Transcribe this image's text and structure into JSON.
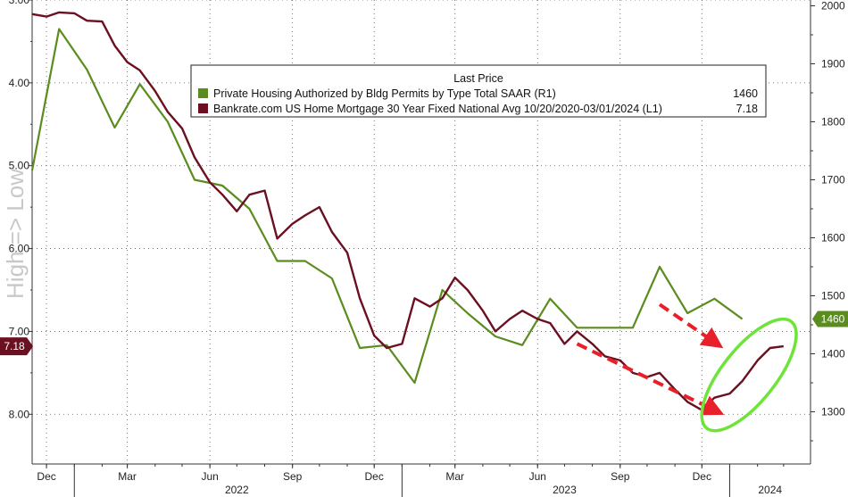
{
  "chart_data": {
    "type": "line",
    "legend_title": "Last Price",
    "legend_placement": "top-center",
    "rotated_label": "High => Low",
    "left_axis": {
      "label": "",
      "inverted": true,
      "range": [
        3.0,
        8.6
      ],
      "ticks": [
        {
          "value": 3.0,
          "label": "3.00"
        },
        {
          "value": 4.0,
          "label": "4.00"
        },
        {
          "value": 5.0,
          "label": "5.00"
        },
        {
          "value": 6.0,
          "label": "6.00"
        },
        {
          "value": 7.0,
          "label": "7.00"
        },
        {
          "value": 8.0,
          "label": "8.00"
        }
      ]
    },
    "right_axis": {
      "label": "",
      "range": [
        1210,
        2010
      ],
      "ticks": [
        {
          "value": 2000,
          "label": "2000"
        },
        {
          "value": 1900,
          "label": "1900"
        },
        {
          "value": 1800,
          "label": "1800"
        },
        {
          "value": 1700,
          "label": "1700"
        },
        {
          "value": 1600,
          "label": "1600"
        },
        {
          "value": 1500,
          "label": "1500"
        },
        {
          "value": 1400,
          "label": "1400"
        },
        {
          "value": 1300,
          "label": "1300"
        }
      ]
    },
    "x_axis": {
      "range": [
        "2021-11-15",
        "2024-03-31"
      ],
      "month_ticks": [
        {
          "date": "2021-12-01",
          "label": "Dec"
        },
        {
          "date": "2022-03-01",
          "label": "Mar"
        },
        {
          "date": "2022-06-01",
          "label": "Jun"
        },
        {
          "date": "2022-09-01",
          "label": "Sep"
        },
        {
          "date": "2022-12-01",
          "label": "Dec"
        },
        {
          "date": "2023-03-01",
          "label": "Mar"
        },
        {
          "date": "2023-06-01",
          "label": "Jun"
        },
        {
          "date": "2023-09-01",
          "label": "Sep"
        },
        {
          "date": "2023-12-01",
          "label": "Dec"
        }
      ],
      "year_labels": [
        {
          "date": "2022-07-01",
          "label": "2022"
        },
        {
          "date": "2023-07-01",
          "label": "2023"
        },
        {
          "date": "2024-02-15",
          "label": "2024"
        }
      ],
      "year_dividers": [
        "2022-01-01",
        "2023-01-01",
        "2024-01-01"
      ]
    },
    "series": [
      {
        "name": "Private Housing Authorized by Bldg Permits by Type Total SAAR  (R1)",
        "last_value": "1460",
        "axis": "right",
        "color": "#5b8c1e",
        "points": [
          [
            "2021-11-15",
            1716
          ],
          [
            "2021-12-15",
            1960
          ],
          [
            "2022-01-15",
            1890
          ],
          [
            "2022-02-15",
            1790
          ],
          [
            "2022-03-15",
            1865
          ],
          [
            "2022-04-15",
            1800
          ],
          [
            "2022-05-15",
            1700
          ],
          [
            "2022-06-15",
            1690
          ],
          [
            "2022-07-15",
            1650
          ],
          [
            "2022-08-15",
            1560
          ],
          [
            "2022-09-15",
            1560
          ],
          [
            "2022-10-15",
            1530
          ],
          [
            "2022-11-15",
            1410
          ],
          [
            "2022-12-15",
            1415
          ],
          [
            "2023-01-15",
            1350
          ],
          [
            "2023-02-15",
            1510
          ],
          [
            "2023-03-15",
            1470
          ],
          [
            "2023-04-15",
            1430
          ],
          [
            "2023-05-15",
            1415
          ],
          [
            "2023-06-15",
            1495
          ],
          [
            "2023-07-15",
            1445
          ],
          [
            "2023-08-15",
            1445
          ],
          [
            "2023-09-15",
            1445
          ],
          [
            "2023-10-15",
            1550
          ],
          [
            "2023-11-15",
            1470
          ],
          [
            "2023-12-15",
            1495
          ],
          [
            "2024-01-15",
            1460
          ]
        ]
      },
      {
        "name": "Bankrate.com US Home Mortgage 30 Year Fixed National Avg 10/20/2020-03/01/2024  (L1)",
        "last_value": "7.18",
        "axis": "left",
        "color": "#6b1020",
        "points": [
          [
            "2021-11-15",
            3.17
          ],
          [
            "2021-12-01",
            3.2
          ],
          [
            "2021-12-15",
            3.15
          ],
          [
            "2022-01-01",
            3.16
          ],
          [
            "2022-01-15",
            3.25
          ],
          [
            "2022-02-01",
            3.26
          ],
          [
            "2022-02-15",
            3.55
          ],
          [
            "2022-03-01",
            3.75
          ],
          [
            "2022-03-15",
            3.85
          ],
          [
            "2022-04-01",
            4.1
          ],
          [
            "2022-04-15",
            4.35
          ],
          [
            "2022-05-01",
            4.55
          ],
          [
            "2022-05-15",
            4.9
          ],
          [
            "2022-06-01",
            5.2
          ],
          [
            "2022-06-15",
            5.35
          ],
          [
            "2022-07-01",
            5.55
          ],
          [
            "2022-07-15",
            5.35
          ],
          [
            "2022-08-01",
            5.3
          ],
          [
            "2022-08-15",
            5.88
          ],
          [
            "2022-09-01",
            5.7
          ],
          [
            "2022-09-15",
            5.6
          ],
          [
            "2022-10-01",
            5.5
          ],
          [
            "2022-10-15",
            5.8
          ],
          [
            "2022-11-01",
            6.05
          ],
          [
            "2022-11-15",
            6.6
          ],
          [
            "2022-12-01",
            7.05
          ],
          [
            "2022-12-15",
            7.2
          ],
          [
            "2023-01-01",
            7.15
          ],
          [
            "2023-01-15",
            6.6
          ],
          [
            "2023-02-01",
            6.7
          ],
          [
            "2023-02-15",
            6.6
          ],
          [
            "2023-03-01",
            6.35
          ],
          [
            "2023-03-15",
            6.5
          ],
          [
            "2023-04-01",
            6.75
          ],
          [
            "2023-04-15",
            7.0
          ],
          [
            "2023-05-01",
            6.85
          ],
          [
            "2023-05-15",
            6.75
          ],
          [
            "2023-06-01",
            6.85
          ],
          [
            "2023-06-15",
            6.9
          ],
          [
            "2023-07-01",
            7.15
          ],
          [
            "2023-07-15",
            7.0
          ],
          [
            "2023-08-01",
            7.15
          ],
          [
            "2023-08-15",
            7.3
          ],
          [
            "2023-09-01",
            7.35
          ],
          [
            "2023-09-15",
            7.5
          ],
          [
            "2023-10-01",
            7.55
          ],
          [
            "2023-10-15",
            7.5
          ],
          [
            "2023-11-01",
            7.7
          ],
          [
            "2023-11-15",
            7.85
          ],
          [
            "2023-12-01",
            7.95
          ],
          [
            "2023-12-15",
            7.8
          ],
          [
            "2024-01-01",
            7.75
          ],
          [
            "2024-01-15",
            7.6
          ],
          [
            "2024-02-01",
            7.35
          ],
          [
            "2024-02-15",
            7.2
          ],
          [
            "2024-03-01",
            7.18
          ]
        ]
      }
    ],
    "annotations": {
      "arrow_color": "#e8202a",
      "ellipse_color": "#6ee43a",
      "arrows": [
        {
          "from": [
            "2023-10-15",
            1485
          ],
          "to": [
            "2023-12-15",
            1420
          ]
        },
        {
          "from": [
            "2023-07-15",
            7.15
          ],
          "to": [
            "2023-12-15",
            7.95
          ]
        }
      ],
      "ellipse": {
        "from": [
          "2023-12-15",
          8.05
        ],
        "to": [
          "2024-03-01",
          7.0
        ]
      }
    }
  }
}
